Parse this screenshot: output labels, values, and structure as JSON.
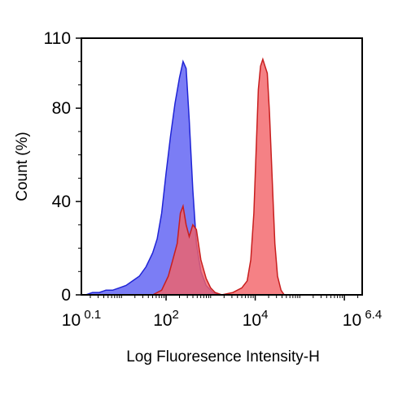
{
  "chart_data": {
    "type": "area",
    "title": "",
    "xlabel": "Log Fluoresence Intensity-H",
    "ylabel": "Count  (%)",
    "x_scale": "log",
    "xlim": [
      0.1,
      6.4
    ],
    "ylim": [
      0,
      110
    ],
    "grid": false,
    "legend": "none",
    "x_ticks": [
      {
        "base": "10",
        "exp": "0.1",
        "value": 0.1
      },
      {
        "base": "10",
        "exp": "2",
        "value": 2
      },
      {
        "base": "10",
        "exp": "4",
        "value": 4
      },
      {
        "base": "10",
        "exp": "6.4",
        "value": 6.4
      }
    ],
    "y_ticks": [
      {
        "label": "0",
        "value": 0
      },
      {
        "label": "40",
        "value": 40
      },
      {
        "label": "80",
        "value": 80
      },
      {
        "label": "110",
        "value": 110
      }
    ],
    "series": [
      {
        "color": "#1f24d6",
        "fill": "#5a5df2",
        "points": [
          [
            0.1,
            0
          ],
          [
            0.2,
            0
          ],
          [
            0.35,
            1
          ],
          [
            0.5,
            1
          ],
          [
            0.65,
            2
          ],
          [
            0.8,
            2
          ],
          [
            0.95,
            3
          ],
          [
            1.1,
            4
          ],
          [
            1.25,
            6
          ],
          [
            1.4,
            8
          ],
          [
            1.55,
            12
          ],
          [
            1.7,
            18
          ],
          [
            1.8,
            24
          ],
          [
            1.9,
            35
          ],
          [
            2.0,
            52
          ],
          [
            2.1,
            68
          ],
          [
            2.2,
            82
          ],
          [
            2.3,
            93
          ],
          [
            2.38,
            100
          ],
          [
            2.45,
            97
          ],
          [
            2.52,
            75
          ],
          [
            2.6,
            45
          ],
          [
            2.68,
            22
          ],
          [
            2.78,
            10
          ],
          [
            2.9,
            4
          ],
          [
            3.05,
            1
          ],
          [
            3.2,
            0
          ],
          [
            6.4,
            0
          ]
        ]
      },
      {
        "color": "#c81e1e",
        "fill": "#f26266",
        "points": [
          [
            1.7,
            0
          ],
          [
            1.9,
            2
          ],
          [
            2.05,
            8
          ],
          [
            2.15,
            15
          ],
          [
            2.25,
            22
          ],
          [
            2.32,
            35
          ],
          [
            2.38,
            38
          ],
          [
            2.45,
            30
          ],
          [
            2.52,
            25
          ],
          [
            2.6,
            30
          ],
          [
            2.68,
            28
          ],
          [
            2.78,
            15
          ],
          [
            2.9,
            7
          ],
          [
            3.0,
            3
          ],
          [
            3.1,
            1
          ],
          [
            3.25,
            0
          ],
          [
            3.5,
            1
          ],
          [
            3.7,
            3
          ],
          [
            3.82,
            6
          ],
          [
            3.9,
            15
          ],
          [
            3.97,
            35
          ],
          [
            4.02,
            62
          ],
          [
            4.07,
            88
          ],
          [
            4.12,
            98
          ],
          [
            4.17,
            101
          ],
          [
            4.22,
            98
          ],
          [
            4.27,
            95
          ],
          [
            4.32,
            78
          ],
          [
            4.38,
            50
          ],
          [
            4.44,
            22
          ],
          [
            4.5,
            8
          ],
          [
            4.58,
            2
          ],
          [
            4.65,
            0
          ],
          [
            6.4,
            0
          ]
        ]
      }
    ]
  }
}
